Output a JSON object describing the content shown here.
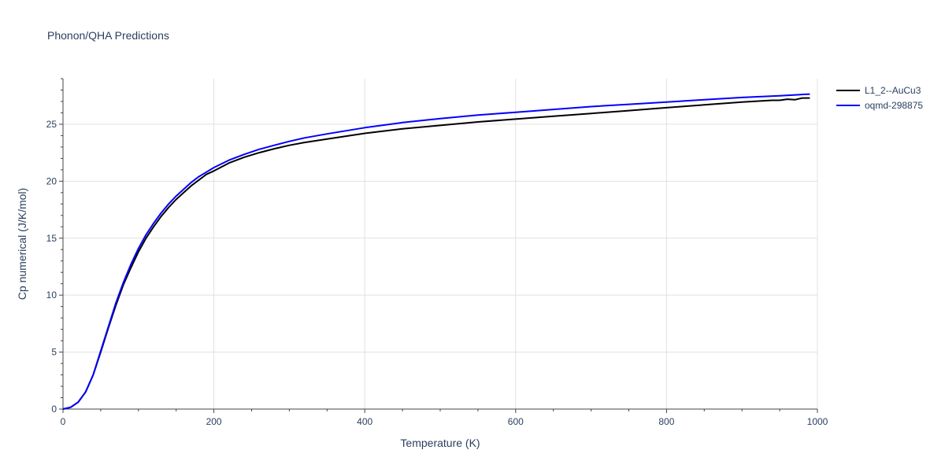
{
  "chart_data": {
    "type": "line",
    "title": "Phonon/QHA Predictions",
    "xlabel": "Temperature (K)",
    "ylabel": "Cp numerical (J/K/mol)",
    "xlim": [
      0,
      1000
    ],
    "ylim": [
      0,
      29
    ],
    "x_ticks": [
      0,
      200,
      400,
      600,
      800,
      1000
    ],
    "y_ticks": [
      0,
      5,
      10,
      15,
      20,
      25
    ],
    "grid": true,
    "legend_position": "top-right",
    "series": [
      {
        "name": "L1_2--AuCu3",
        "color": "#000000",
        "x": [
          0,
          10,
          20,
          30,
          40,
          50,
          60,
          70,
          80,
          90,
          100,
          110,
          120,
          130,
          140,
          150,
          160,
          170,
          180,
          190,
          200,
          220,
          240,
          260,
          280,
          300,
          320,
          350,
          400,
          450,
          500,
          550,
          600,
          650,
          700,
          750,
          800,
          850,
          900,
          940,
          950,
          960,
          970,
          980,
          990
        ],
        "y": [
          0,
          0.15,
          0.6,
          1.5,
          3.0,
          5.0,
          7.1,
          9.1,
          10.9,
          12.4,
          13.8,
          15.0,
          16.0,
          16.9,
          17.7,
          18.4,
          19.0,
          19.6,
          20.1,
          20.6,
          20.9,
          21.6,
          22.1,
          22.5,
          22.85,
          23.15,
          23.4,
          23.7,
          24.2,
          24.6,
          24.9,
          25.2,
          25.45,
          25.7,
          25.95,
          26.2,
          26.45,
          26.7,
          26.95,
          27.1,
          27.1,
          27.2,
          27.15,
          27.3,
          27.3
        ]
      },
      {
        "name": "oqmd-298875",
        "color": "#0000ff",
        "x": [
          0,
          10,
          20,
          30,
          40,
          50,
          60,
          70,
          80,
          90,
          100,
          110,
          120,
          130,
          140,
          150,
          160,
          170,
          180,
          190,
          200,
          220,
          240,
          260,
          280,
          300,
          320,
          350,
          400,
          450,
          500,
          550,
          600,
          650,
          700,
          750,
          800,
          850,
          900,
          950,
          990
        ],
        "y": [
          0,
          0.15,
          0.6,
          1.5,
          3.0,
          5.1,
          7.2,
          9.3,
          11.1,
          12.7,
          14.1,
          15.3,
          16.3,
          17.2,
          18.0,
          18.7,
          19.3,
          19.9,
          20.4,
          20.8,
          21.2,
          21.85,
          22.35,
          22.8,
          23.15,
          23.5,
          23.8,
          24.15,
          24.7,
          25.15,
          25.5,
          25.8,
          26.05,
          26.3,
          26.55,
          26.75,
          26.95,
          27.15,
          27.35,
          27.5,
          27.65
        ]
      }
    ]
  }
}
